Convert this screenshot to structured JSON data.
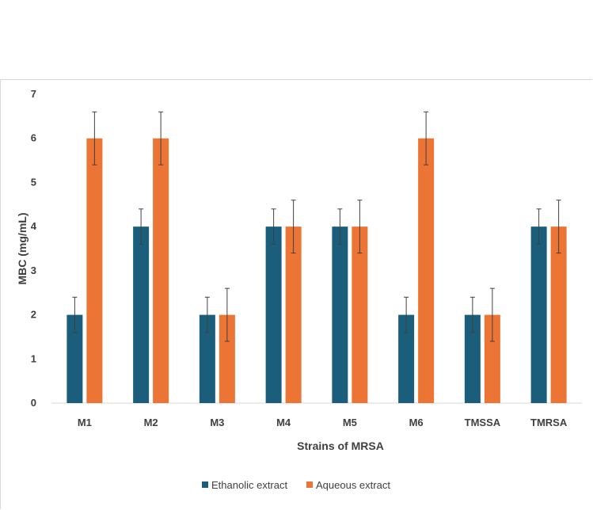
{
  "chart_data": {
    "type": "bar",
    "title": "",
    "xlabel": "Strains of MRSA",
    "ylabel": "MBC (mg/mL)",
    "ylim": [
      0,
      7
    ],
    "yticks": [
      0,
      1,
      2,
      3,
      4,
      5,
      6,
      7
    ],
    "grid": false,
    "legend_position": "bottom",
    "categories": [
      "M1",
      "M2",
      "M3",
      "M4",
      "M5",
      "M6",
      "TMSSA",
      "TMRSA"
    ],
    "series": [
      {
        "name": "Ethanolic extract",
        "color": "#1b5e7c",
        "values": [
          2,
          4,
          2,
          4,
          4,
          2,
          2,
          4
        ],
        "errors": [
          0.4,
          0.4,
          0.4,
          0.4,
          0.4,
          0.4,
          0.4,
          0.4
        ]
      },
      {
        "name": "Aqueous extract",
        "color": "#ec7434",
        "values": [
          6,
          6,
          2,
          4,
          4,
          6,
          2,
          4
        ],
        "errors": [
          0.6,
          0.6,
          0.6,
          0.6,
          0.6,
          0.6,
          0.6,
          0.6
        ]
      }
    ]
  }
}
